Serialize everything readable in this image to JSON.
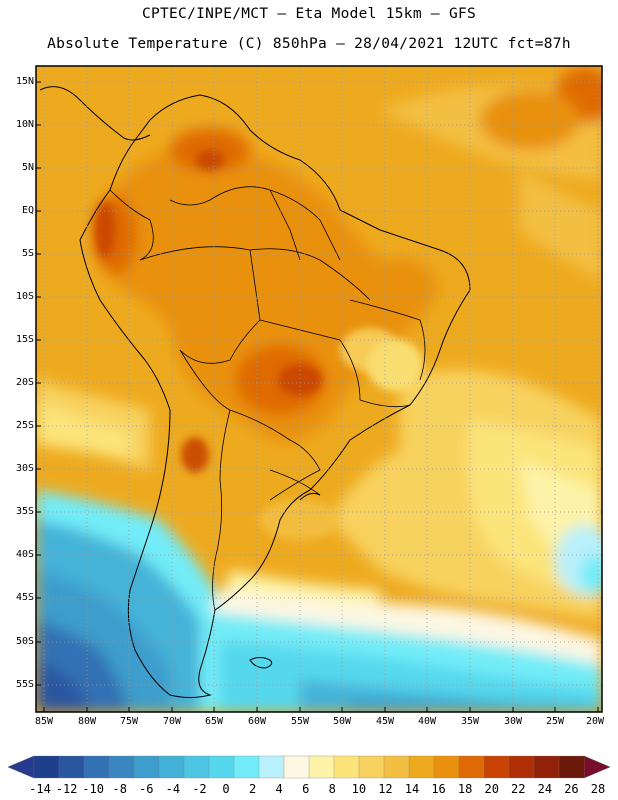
{
  "header": {
    "line1": "CPTEC/INPE/MCT –  Eta Model 15km – GFS",
    "line2": "Absolute Temperature (C) 850hPa – 28/04/2021 12UTC fct=87h"
  },
  "lat_labels": [
    "15N",
    "10N",
    "5N",
    "EQ",
    "5S",
    "10S",
    "15S",
    "20S",
    "25S",
    "30S",
    "35S",
    "40S",
    "45S",
    "50S",
    "55S"
  ],
  "lon_labels": [
    "85W",
    "80W",
    "75W",
    "70W",
    "65W",
    "60W",
    "55W",
    "50W",
    "45W",
    "40W",
    "35W",
    "30W",
    "25W",
    "20W"
  ],
  "colorbar": {
    "labels": [
      "-14",
      "-12",
      "-10",
      "-8",
      "-6",
      "-4",
      "-2",
      "0",
      "2",
      "4",
      "6",
      "8",
      "10",
      "12",
      "14",
      "16",
      "18",
      "20",
      "22",
      "24",
      "26",
      "28"
    ],
    "colors": [
      "#1e3f8c",
      "#2a56a0",
      "#3271b4",
      "#3a86c0",
      "#3d9dcc",
      "#44b2d8",
      "#4cc6e3",
      "#55d8ee",
      "#72ecf8",
      "#b8f0fb",
      "#fdf7e3",
      "#fdf3a8",
      "#fbe47a",
      "#f8d25e",
      "#f3bf43",
      "#eeaa1f",
      "#e9910c",
      "#df6a05",
      "#c94404",
      "#b12f06",
      "#922109",
      "#6c1a0c"
    ],
    "left_tip_color": "#283a90",
    "right_tip_color": "#7a0d2e"
  },
  "map": {
    "projection_extent_lon": [
      -85.5,
      -19.5
    ],
    "projection_extent_lat": [
      -58,
      17
    ],
    "grid": "dotted"
  }
}
